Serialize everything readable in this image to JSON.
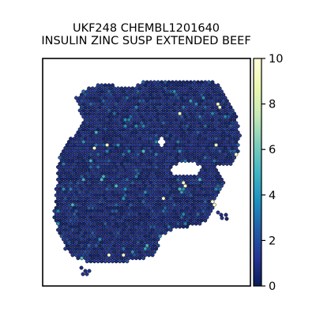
{
  "chart_data": {
    "type": "heatmap",
    "subtype": "spatial hexagonal spot map",
    "title_lines": [
      "UKF248 CHEMBL1201640",
      "INSULIN ZINC SUSP EXTENDED BEEF"
    ],
    "xlabel": "",
    "ylabel": "",
    "axes_ticks": false,
    "colorbar": {
      "colormap": "YlGnBu",
      "range": [
        0,
        10
      ],
      "ticks": [
        0,
        2,
        4,
        6,
        8,
        10
      ],
      "placement": "right"
    },
    "value_summary": {
      "typical_spot_value": 1,
      "max_value": 10,
      "note": "most spots dark navy (about 0.5-2); scattered brighter spots around 3-5; a few white/pale spots near 10"
    }
  }
}
